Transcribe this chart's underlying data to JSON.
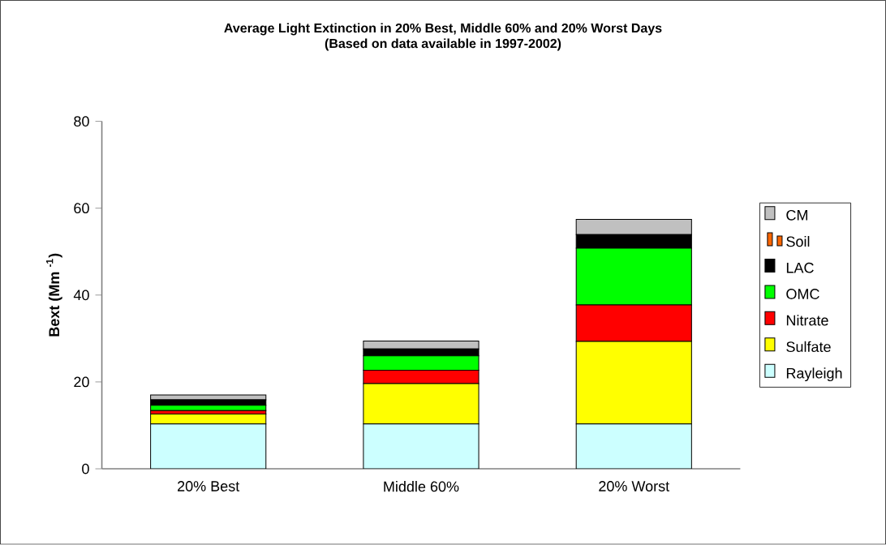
{
  "chart_data": {
    "type": "bar",
    "title": "Average Light Extinction in 20% Best, Middle 60% and 20% Worst Days",
    "subtitle": "(Based on data available in 1997-2002)",
    "ylabel": "Bext (Mm $^{-1}$)",
    "categories": [
      "20% Best",
      "Middle 60%",
      "20% Worst"
    ],
    "stacked": true,
    "ylim": [
      0,
      80
    ],
    "yticks": [
      0,
      20,
      40,
      60,
      80
    ],
    "legend": "right",
    "series": [
      {
        "name": "Rayleigh",
        "color": "#ccffff",
        "values": [
          10.3,
          10.3,
          10.3
        ]
      },
      {
        "name": "Sulfate",
        "color": "#ffff00",
        "values": [
          2.3,
          9.3,
          19.0
        ]
      },
      {
        "name": "Nitrate",
        "color": "#ff0000",
        "values": [
          0.8,
          3.1,
          8.4
        ]
      },
      {
        "name": "OMC",
        "color": "#00ff00",
        "values": [
          1.2,
          3.3,
          13.1
        ]
      },
      {
        "name": "LAC",
        "color": "#000000",
        "values": [
          1.3,
          1.6,
          3.1
        ]
      },
      {
        "name": "Soil",
        "color": "#ff6600",
        "values": [
          null,
          null,
          null
        ]
      },
      {
        "name": "CM",
        "color": "#c0c0c0",
        "values": [
          1.1,
          1.8,
          3.5
        ]
      }
    ]
  }
}
